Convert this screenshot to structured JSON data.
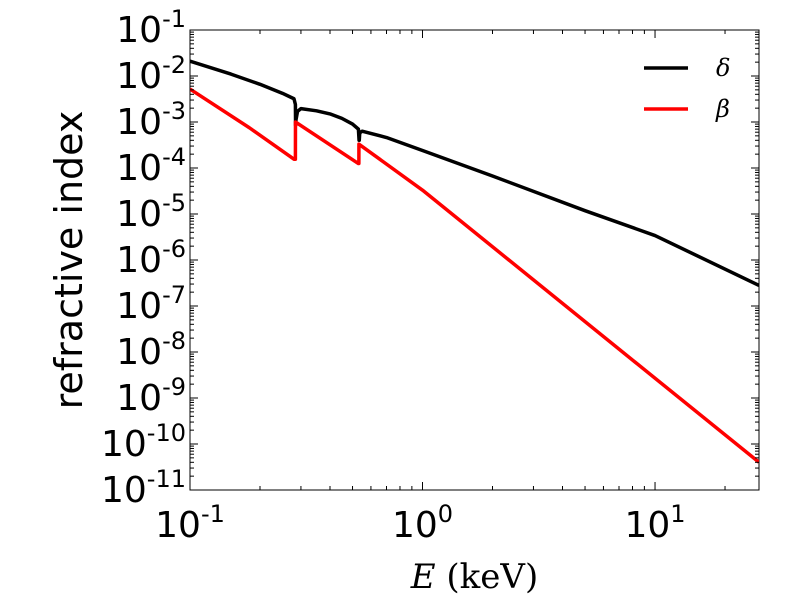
{
  "chart_data": {
    "type": "line",
    "title": "",
    "xlabel": {
      "symbol": "E",
      "unit": "(keV)"
    },
    "ylabel": "refractive index",
    "xscale": "log",
    "yscale": "log",
    "xlim": [
      0.1,
      28
    ],
    "ylim": [
      1e-11,
      0.1
    ],
    "grid": false,
    "legend": "top-right",
    "xticks": [
      {
        "value": 0.1,
        "base": "10",
        "exp": "-1"
      },
      {
        "value": 1,
        "base": "10",
        "exp": "0"
      },
      {
        "value": 10,
        "base": "10",
        "exp": "1"
      }
    ],
    "yticks": [
      {
        "value": 1e-11,
        "base": "10",
        "exp": "-11"
      },
      {
        "value": 1e-10,
        "base": "10",
        "exp": "-10"
      },
      {
        "value": 1e-09,
        "base": "10",
        "exp": "-9"
      },
      {
        "value": 1e-08,
        "base": "10",
        "exp": "-8"
      },
      {
        "value": 1e-07,
        "base": "10",
        "exp": "-7"
      },
      {
        "value": 1e-06,
        "base": "10",
        "exp": "-6"
      },
      {
        "value": 1e-05,
        "base": "10",
        "exp": "-5"
      },
      {
        "value": 0.0001,
        "base": "10",
        "exp": "-4"
      },
      {
        "value": 0.001,
        "base": "10",
        "exp": "-3"
      },
      {
        "value": 0.01,
        "base": "10",
        "exp": "-2"
      },
      {
        "value": 0.1,
        "base": "10",
        "exp": "-1"
      }
    ],
    "series": [
      {
        "name": "δ",
        "color": "#000000",
        "points": [
          [
            0.1,
            0.021
          ],
          [
            0.15,
            0.011
          ],
          [
            0.2,
            0.0066
          ],
          [
            0.25,
            0.0042
          ],
          [
            0.28,
            0.0032
          ],
          [
            0.284,
            0.0024
          ],
          [
            0.2845,
            0.00085
          ],
          [
            0.2855,
            0.0011
          ],
          [
            0.29,
            0.0017
          ],
          [
            0.3,
            0.00195
          ],
          [
            0.35,
            0.00175
          ],
          [
            0.4,
            0.0015
          ],
          [
            0.45,
            0.0012
          ],
          [
            0.5,
            0.0009
          ],
          [
            0.53,
            0.0007
          ],
          [
            0.5335,
            0.0004
          ],
          [
            0.5345,
            0.0004
          ],
          [
            0.537,
            0.00058
          ],
          [
            0.55,
            0.00063
          ],
          [
            0.7,
            0.00046
          ],
          [
            1,
            0.00024
          ],
          [
            2,
            6.7e-05
          ],
          [
            5,
            1.18e-05
          ],
          [
            10,
            3.4e-06
          ],
          [
            28,
            2.8e-07
          ]
        ]
      },
      {
        "name": "β",
        "color": "#ff0000",
        "points": [
          [
            0.1,
            0.0052
          ],
          [
            0.18,
            0.00075
          ],
          [
            0.28,
            0.000155
          ],
          [
            0.284,
            0.000155
          ],
          [
            0.2842,
            0.001
          ],
          [
            0.53,
            0.000125
          ],
          [
            0.5325,
            0.000125
          ],
          [
            0.5327,
            0.00033
          ],
          [
            1,
            3.3e-05
          ],
          [
            28,
            4e-11
          ]
        ]
      }
    ]
  }
}
